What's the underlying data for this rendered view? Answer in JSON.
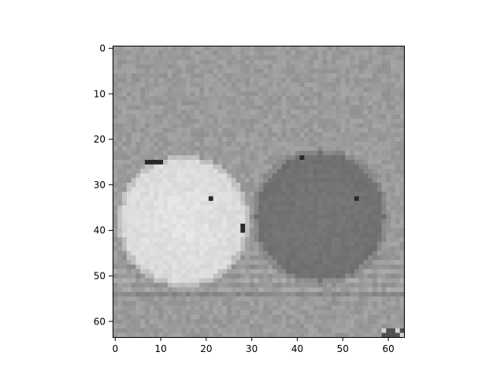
{
  "figure": {
    "kind": "grayscale image plot (imshow)",
    "colormap": "gray",
    "background_color": "#ffffff",
    "axes_color": "#000000"
  },
  "image": {
    "grid_size": [
      64,
      64
    ],
    "mean_gray": 155,
    "objects": [
      {
        "label": "bright-ball",
        "center": [
          15,
          38
        ],
        "radius": 13.5,
        "gray": 228,
        "position": "left"
      },
      {
        "label": "dark-ball",
        "center": [
          45,
          37
        ],
        "radius": 14,
        "gray": 118,
        "position": "right"
      }
    ]
  },
  "axes": {
    "x_ticks": [
      "0",
      "10",
      "20",
      "30",
      "40",
      "50",
      "60"
    ],
    "y_ticks": [
      "0",
      "10",
      "20",
      "30",
      "40",
      "50",
      "60"
    ],
    "x_range": [
      -0.5,
      63.5
    ],
    "y_range": [
      63.5,
      -0.5
    ]
  }
}
